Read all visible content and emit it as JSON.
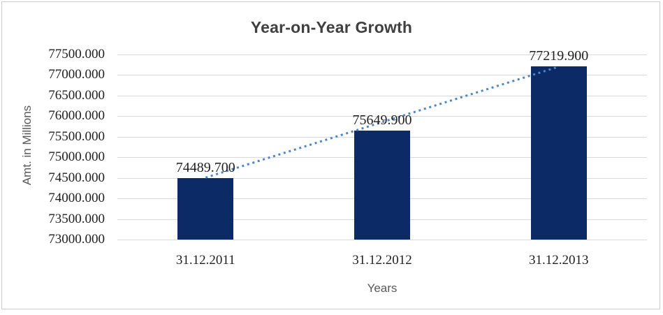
{
  "chart": {
    "title": "Year-on-Year Growth",
    "x_axis_title": "Years",
    "y_axis_title": "Amt. in Millions"
  },
  "chart_data": {
    "type": "bar",
    "title": "Year-on-Year Growth",
    "xlabel": "Years",
    "ylabel": "Amt. in Millions",
    "categories": [
      "31.12.2011",
      "31.12.2012",
      "31.12.2013"
    ],
    "series": [
      {
        "name": "Amt. in Millions",
        "values": [
          74489.7,
          75649.9,
          77219.9
        ]
      }
    ],
    "data_labels": [
      "74489.700",
      "75649.900",
      "77219.900"
    ],
    "y_ticks": [
      73000,
      73500,
      74000,
      74500,
      75000,
      75500,
      76000,
      76500,
      77000,
      77500
    ],
    "y_tick_labels": [
      "73000.000",
      "73500.000",
      "74000.000",
      "74500.000",
      "75000.000",
      "75500.000",
      "76000.000",
      "76500.000",
      "77000.000",
      "77500.000"
    ],
    "ylim": [
      73000,
      77500
    ],
    "grid": "horizontal",
    "legend": "none",
    "trendline": {
      "type": "linear",
      "style": "dotted"
    },
    "colors": {
      "bar": "#0b2a66",
      "trendline": "#4d86c6",
      "gridline": "#d9d9d9",
      "title": "#404040",
      "axis_title": "#595959",
      "tick_label": "#1f1f1f",
      "border": "#cccccc"
    }
  }
}
